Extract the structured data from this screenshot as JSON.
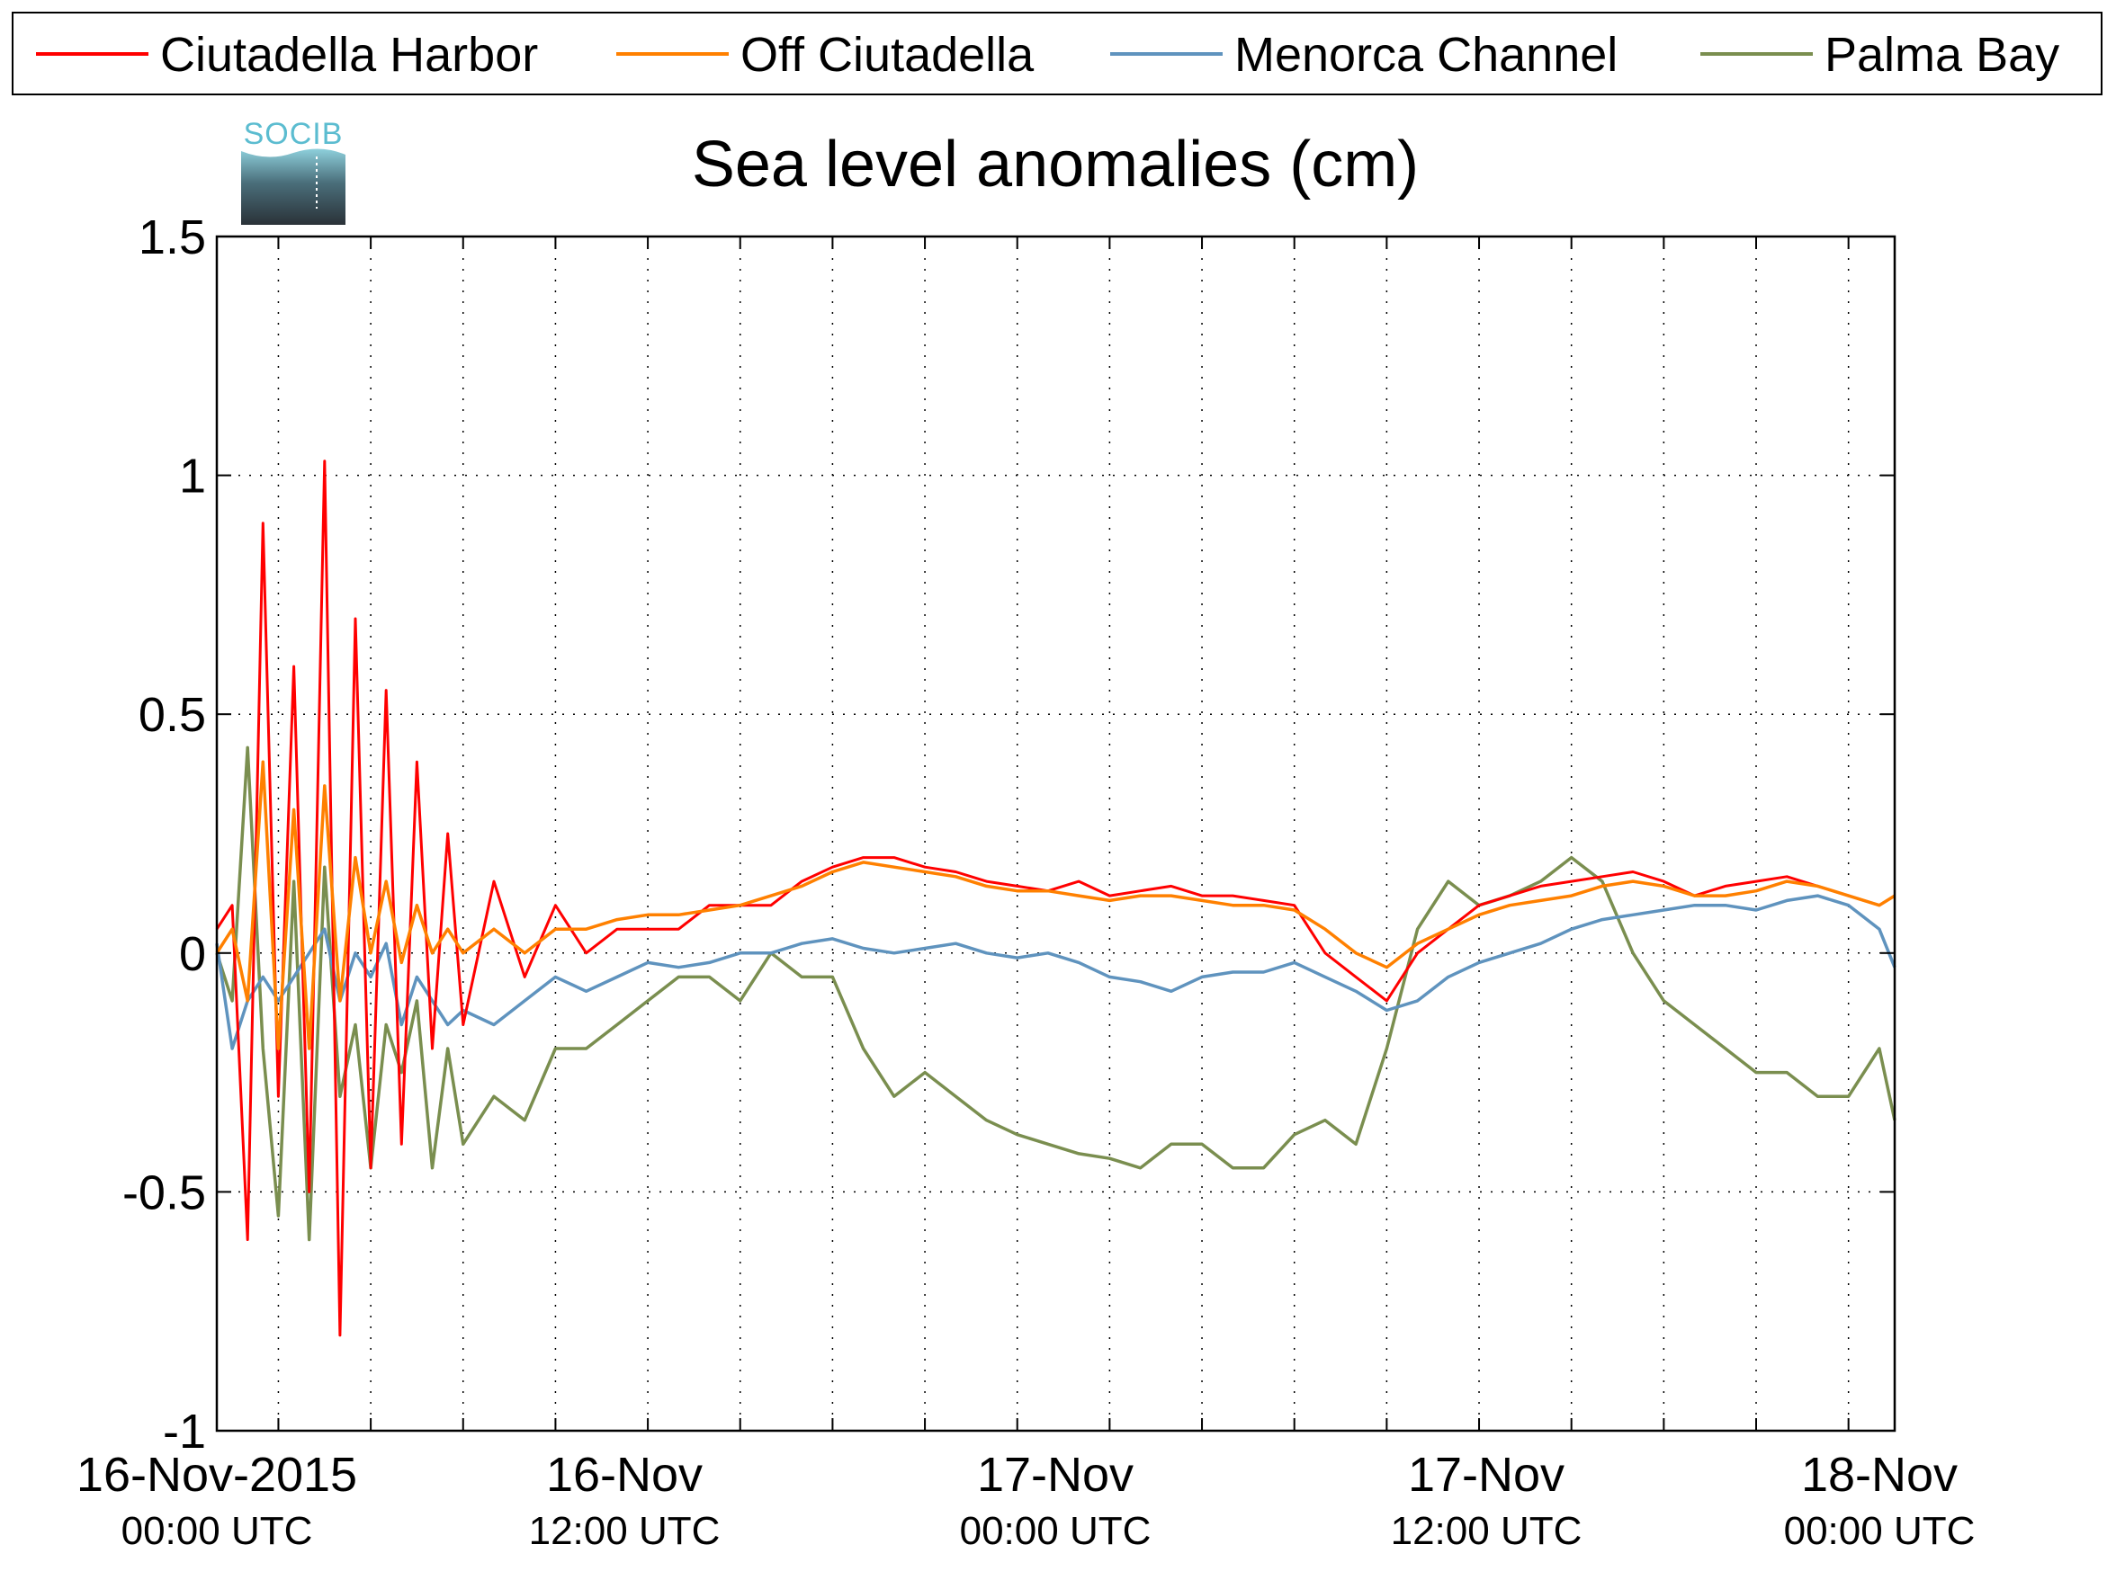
{
  "chart_data": {
    "type": "line",
    "title": "Sea level anomalies (cm)",
    "xlabel": "",
    "ylabel": "",
    "ylim": [
      -1,
      1.5
    ],
    "xlim_hours": [
      -10,
      99
    ],
    "grid": true,
    "legend_position": "top",
    "y_ticks": [
      "1.5",
      "1",
      "0.5",
      "0",
      "-0.5",
      "-1"
    ],
    "x_tick_labels": [
      {
        "date": "16-Nov-2015",
        "time": "00:00 UTC"
      },
      {
        "date": "16-Nov",
        "time": "12:00 UTC"
      },
      {
        "date": "17-Nov",
        "time": "00:00 UTC"
      },
      {
        "date": "17-Nov",
        "time": "12:00 UTC"
      },
      {
        "date": "18-Nov",
        "time": "00:00 UTC"
      }
    ],
    "series": [
      {
        "name": "Ciutadella Harbor",
        "color": "#ff0000",
        "x": [
          -10,
          -9,
          -8,
          -7,
          -6,
          -5,
          -4,
          -3,
          -2,
          -1,
          0,
          1,
          2,
          3,
          4,
          5,
          6,
          8,
          10,
          12,
          14,
          16,
          18,
          20,
          22,
          24,
          26,
          28,
          30,
          32,
          34,
          36,
          38,
          40,
          42,
          44,
          46,
          48,
          50,
          52,
          54,
          56,
          58,
          60,
          62,
          64,
          66,
          68,
          70,
          72,
          74,
          76,
          78,
          80,
          82,
          84,
          86,
          88,
          90,
          92,
          94,
          96,
          98,
          99
        ],
        "values": [
          0.05,
          0.1,
          -0.6,
          0.9,
          -0.3,
          0.6,
          -0.5,
          1.03,
          -0.8,
          0.7,
          -0.45,
          0.55,
          -0.4,
          0.4,
          -0.2,
          0.25,
          -0.15,
          0.15,
          -0.05,
          0.1,
          0.0,
          0.05,
          0.05,
          0.05,
          0.1,
          0.1,
          0.1,
          0.15,
          0.18,
          0.2,
          0.2,
          0.18,
          0.17,
          0.15,
          0.14,
          0.13,
          0.15,
          0.12,
          0.13,
          0.14,
          0.12,
          0.12,
          0.11,
          0.1,
          0.0,
          -0.05,
          -0.1,
          0.0,
          0.05,
          0.1,
          0.12,
          0.14,
          0.15,
          0.16,
          0.17,
          0.15,
          0.12,
          0.14,
          0.15,
          0.16,
          0.14,
          0.12,
          0.1,
          0.12
        ]
      },
      {
        "name": "Off Ciutadella",
        "color": "#ff8000",
        "x": [
          -10,
          -9,
          -8,
          -7,
          -6,
          -5,
          -4,
          -3,
          -2,
          -1,
          0,
          1,
          2,
          3,
          4,
          5,
          6,
          8,
          10,
          12,
          14,
          16,
          18,
          20,
          22,
          24,
          26,
          28,
          30,
          32,
          34,
          36,
          38,
          40,
          42,
          44,
          46,
          48,
          50,
          52,
          54,
          56,
          58,
          60,
          62,
          64,
          66,
          68,
          70,
          72,
          74,
          76,
          78,
          80,
          82,
          84,
          86,
          88,
          90,
          92,
          94,
          96,
          98,
          99
        ],
        "values": [
          0.0,
          0.05,
          -0.1,
          0.4,
          -0.2,
          0.3,
          -0.2,
          0.35,
          -0.1,
          0.2,
          0.0,
          0.15,
          -0.02,
          0.1,
          0.0,
          0.05,
          0.0,
          0.05,
          0.0,
          0.05,
          0.05,
          0.07,
          0.08,
          0.08,
          0.09,
          0.1,
          0.12,
          0.14,
          0.17,
          0.19,
          0.18,
          0.17,
          0.16,
          0.14,
          0.13,
          0.13,
          0.12,
          0.11,
          0.12,
          0.12,
          0.11,
          0.1,
          0.1,
          0.09,
          0.05,
          0.0,
          -0.03,
          0.02,
          0.05,
          0.08,
          0.1,
          0.11,
          0.12,
          0.14,
          0.15,
          0.14,
          0.12,
          0.12,
          0.13,
          0.15,
          0.14,
          0.12,
          0.1,
          0.12
        ]
      },
      {
        "name": "Menorca Channel",
        "color": "#5f93be",
        "x": [
          -10,
          -9,
          -8,
          -7,
          -6,
          -5,
          -4,
          -3,
          -2,
          -1,
          0,
          1,
          2,
          3,
          4,
          5,
          6,
          8,
          10,
          12,
          14,
          16,
          18,
          20,
          22,
          24,
          26,
          28,
          30,
          32,
          34,
          36,
          38,
          40,
          42,
          44,
          46,
          48,
          50,
          52,
          54,
          56,
          58,
          60,
          62,
          64,
          66,
          68,
          70,
          72,
          74,
          76,
          78,
          80,
          82,
          84,
          86,
          88,
          90,
          92,
          94,
          96,
          98,
          99
        ],
        "values": [
          0.02,
          -0.2,
          -0.1,
          -0.05,
          -0.1,
          -0.05,
          0.0,
          0.05,
          -0.1,
          0.0,
          -0.05,
          0.02,
          -0.15,
          -0.05,
          -0.1,
          -0.15,
          -0.12,
          -0.15,
          -0.1,
          -0.05,
          -0.08,
          -0.05,
          -0.02,
          -0.03,
          -0.02,
          0.0,
          0.0,
          0.02,
          0.03,
          0.01,
          0.0,
          0.01,
          0.02,
          0.0,
          -0.01,
          0.0,
          -0.02,
          -0.05,
          -0.06,
          -0.08,
          -0.05,
          -0.04,
          -0.04,
          -0.02,
          -0.05,
          -0.08,
          -0.12,
          -0.1,
          -0.05,
          -0.02,
          0.0,
          0.02,
          0.05,
          0.07,
          0.08,
          0.09,
          0.1,
          0.1,
          0.09,
          0.11,
          0.12,
          0.1,
          0.05,
          -0.03
        ]
      },
      {
        "name": "Palma Bay",
        "color": "#7a8e4f",
        "x": [
          -10,
          -9,
          -8,
          -7,
          -6,
          -5,
          -4,
          -3,
          -2,
          -1,
          0,
          1,
          2,
          3,
          4,
          5,
          6,
          8,
          10,
          12,
          14,
          16,
          18,
          20,
          22,
          24,
          26,
          28,
          30,
          32,
          34,
          36,
          38,
          40,
          42,
          44,
          46,
          48,
          50,
          52,
          54,
          56,
          58,
          60,
          62,
          64,
          66,
          68,
          70,
          72,
          74,
          76,
          78,
          80,
          82,
          84,
          86,
          88,
          90,
          92,
          94,
          96,
          98,
          99
        ],
        "values": [
          0.0,
          -0.1,
          0.43,
          -0.2,
          -0.55,
          0.15,
          -0.6,
          0.18,
          -0.3,
          -0.15,
          -0.45,
          -0.15,
          -0.25,
          -0.1,
          -0.45,
          -0.2,
          -0.4,
          -0.3,
          -0.35,
          -0.2,
          -0.2,
          -0.15,
          -0.1,
          -0.05,
          -0.05,
          -0.1,
          0.0,
          -0.05,
          -0.05,
          -0.2,
          -0.3,
          -0.25,
          -0.3,
          -0.35,
          -0.38,
          -0.4,
          -0.42,
          -0.43,
          -0.45,
          -0.4,
          -0.4,
          -0.45,
          -0.45,
          -0.38,
          -0.35,
          -0.4,
          -0.2,
          0.05,
          0.15,
          0.1,
          0.12,
          0.15,
          0.2,
          0.15,
          0.0,
          -0.1,
          -0.15,
          -0.2,
          -0.25,
          -0.25,
          -0.3,
          -0.3,
          -0.2,
          -0.35
        ]
      }
    ]
  },
  "logo": {
    "text": "SOCIB"
  }
}
